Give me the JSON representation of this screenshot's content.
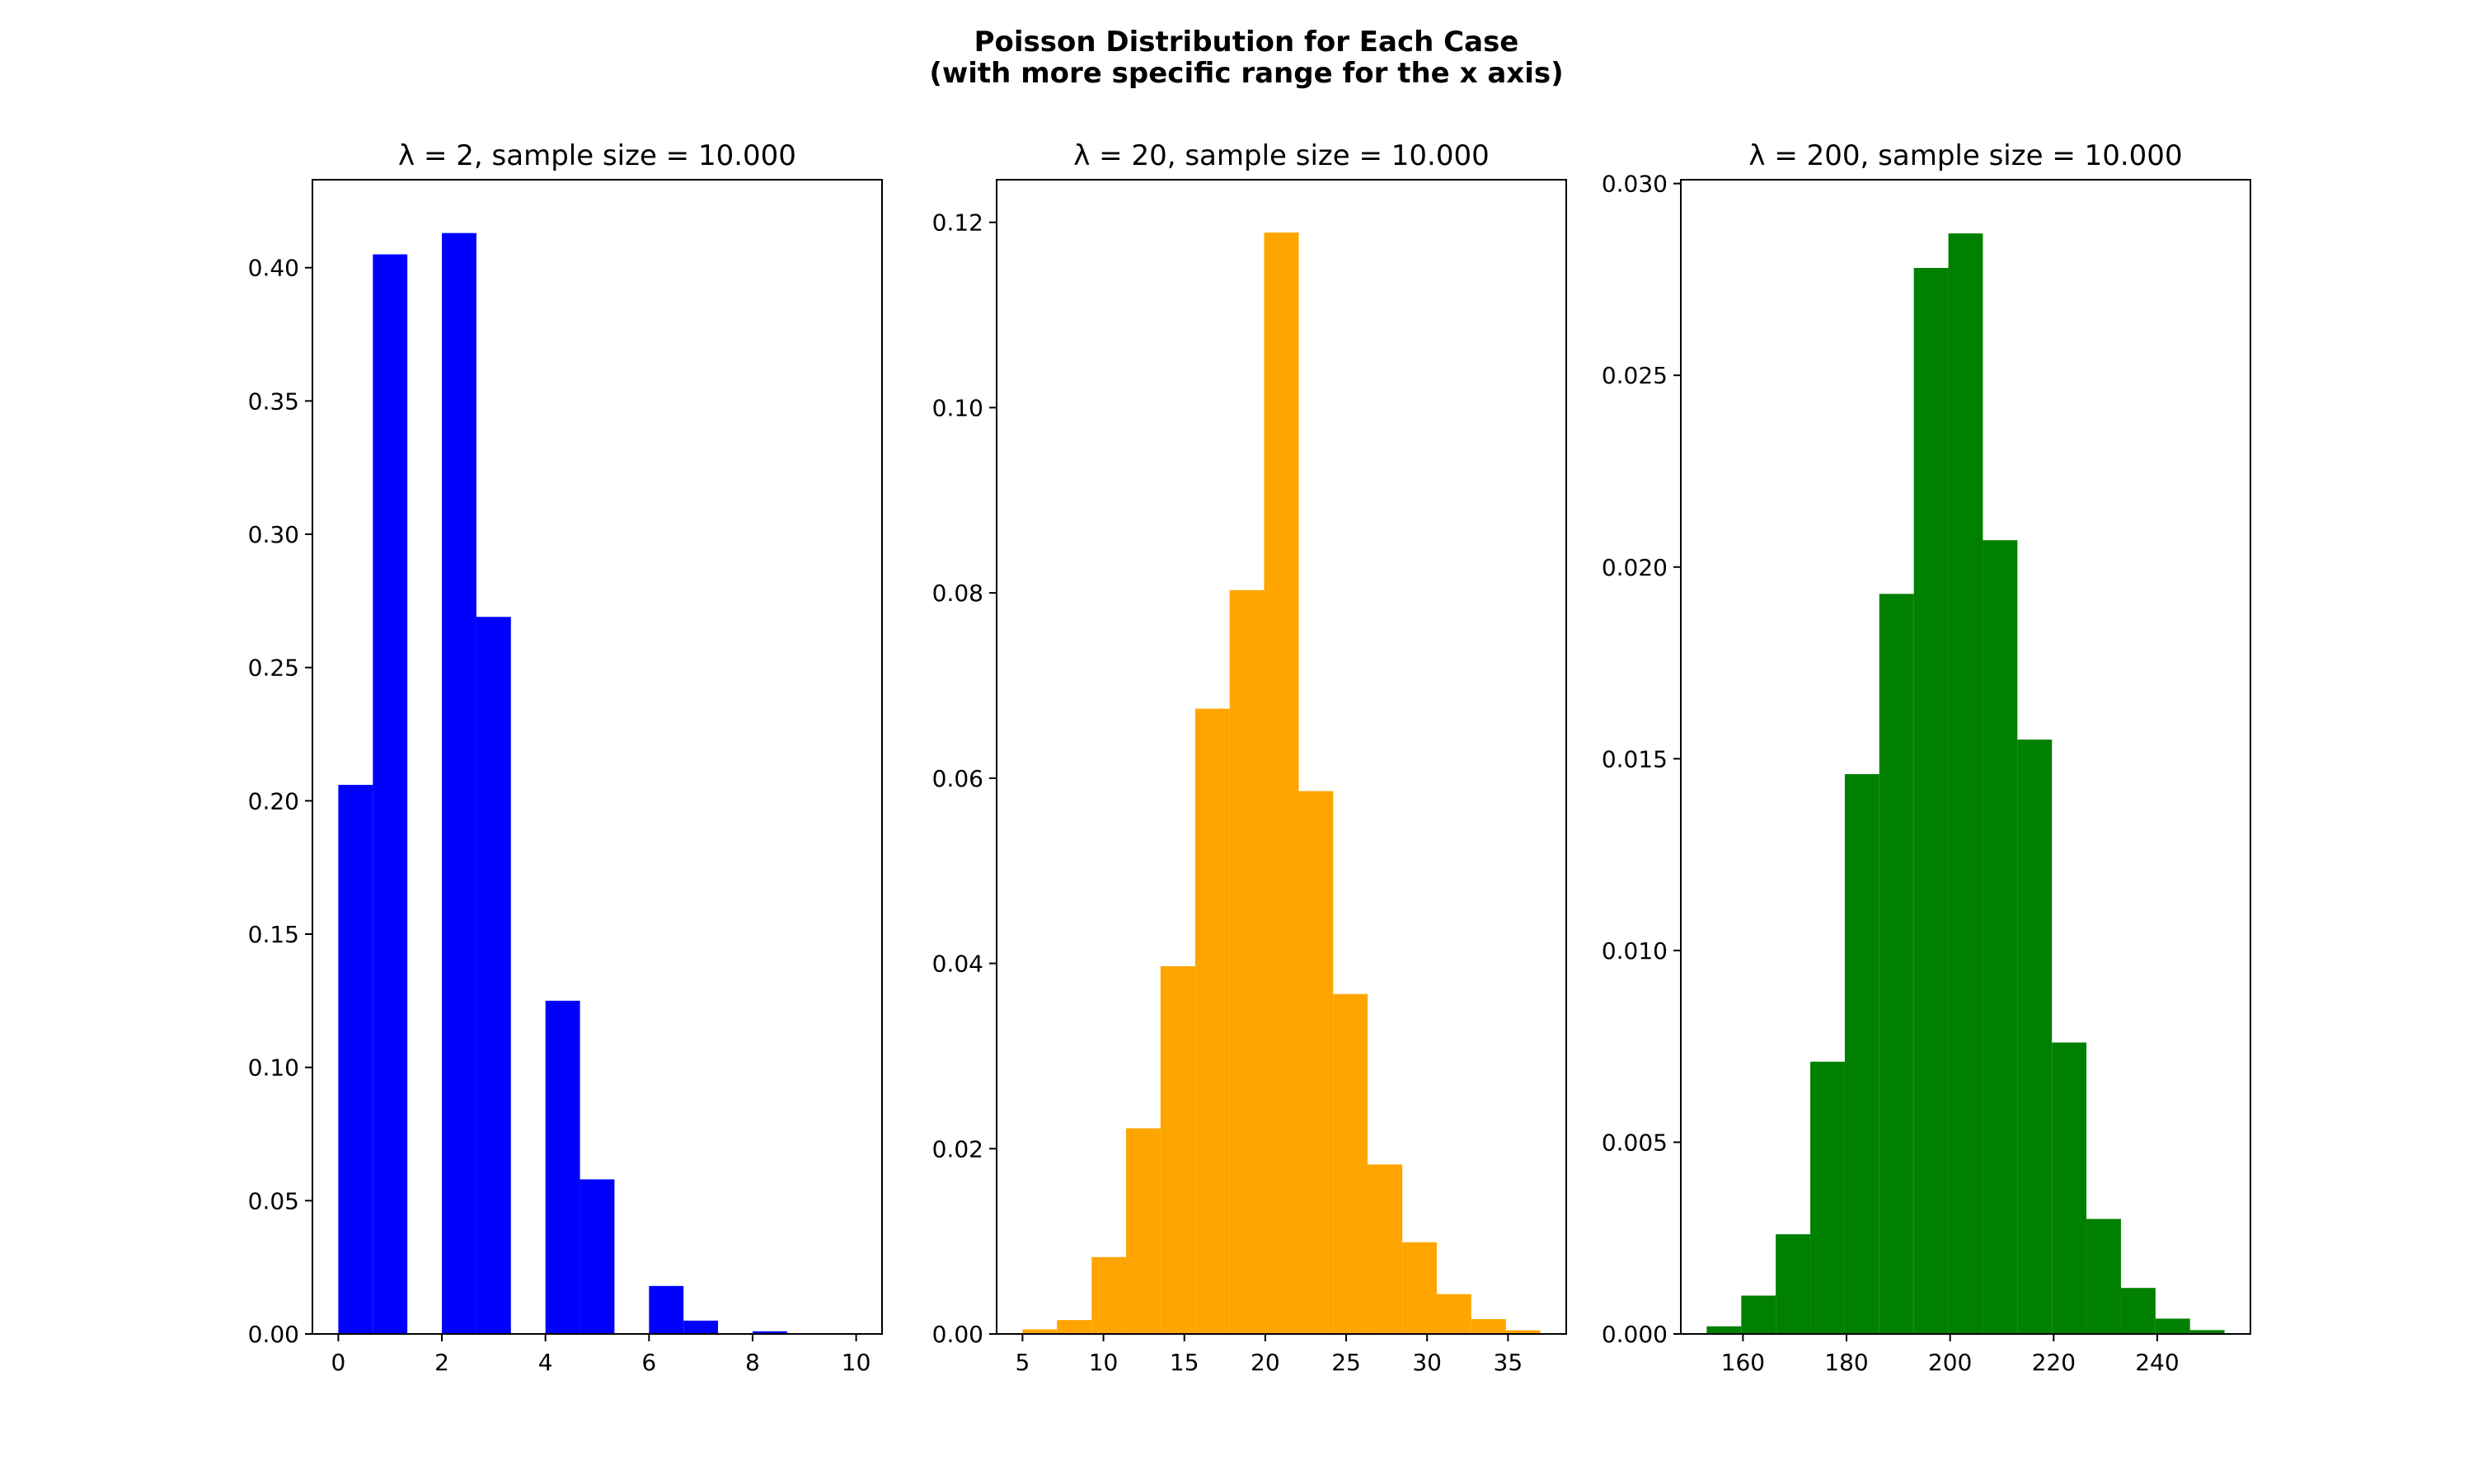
{
  "figure": {
    "title_line1": "Poisson Distribution for Each Case",
    "title_line2": "(with more specific range for the x axis)"
  },
  "chart_data": [
    {
      "type": "bar",
      "title": "λ = 2, sample size = 10.000",
      "color": "#0000ff",
      "xlim": [
        -0.5,
        10.5
      ],
      "ylim": [
        0,
        0.433
      ],
      "xticks": [
        0,
        2,
        4,
        6,
        8,
        10
      ],
      "xtick_labels": [
        "0",
        "2",
        "4",
        "6",
        "8",
        "10"
      ],
      "yticks": [
        0.0,
        0.05,
        0.1,
        0.15,
        0.2,
        0.25,
        0.3,
        0.35,
        0.4
      ],
      "ytick_labels": [
        "0.00",
        "0.05",
        "0.10",
        "0.15",
        "0.20",
        "0.25",
        "0.30",
        "0.35",
        "0.40"
      ],
      "bins": [
        {
          "x0": 0.0,
          "x1": 0.667,
          "value": 0.206
        },
        {
          "x0": 0.667,
          "x1": 1.333,
          "value": 0.405
        },
        {
          "x0": 1.333,
          "x1": 2.0,
          "value": 0.0
        },
        {
          "x0": 2.0,
          "x1": 2.667,
          "value": 0.413
        },
        {
          "x0": 2.667,
          "x1": 3.333,
          "value": 0.269
        },
        {
          "x0": 3.333,
          "x1": 4.0,
          "value": 0.0
        },
        {
          "x0": 4.0,
          "x1": 4.667,
          "value": 0.125
        },
        {
          "x0": 4.667,
          "x1": 5.333,
          "value": 0.058
        },
        {
          "x0": 5.333,
          "x1": 6.0,
          "value": 0.0
        },
        {
          "x0": 6.0,
          "x1": 6.667,
          "value": 0.018
        },
        {
          "x0": 6.667,
          "x1": 7.333,
          "value": 0.005
        },
        {
          "x0": 7.333,
          "x1": 8.0,
          "value": 0.0
        },
        {
          "x0": 8.0,
          "x1": 8.667,
          "value": 0.001
        },
        {
          "x0": 8.667,
          "x1": 9.333,
          "value": 0.0
        },
        {
          "x0": 9.333,
          "x1": 10.0,
          "value": 0.0
        }
      ]
    },
    {
      "type": "bar",
      "title": "λ = 20, sample size = 10.000",
      "color": "#ffa500",
      "xlim": [
        3.4,
        38.6
      ],
      "ylim": [
        0,
        0.1246
      ],
      "xticks": [
        5,
        10,
        15,
        20,
        25,
        30,
        35
      ],
      "xtick_labels": [
        "5",
        "10",
        "15",
        "20",
        "25",
        "30",
        "35"
      ],
      "yticks": [
        0.0,
        0.02,
        0.04,
        0.06,
        0.08,
        0.1,
        0.12
      ],
      "ytick_labels": [
        "0.00",
        "0.02",
        "0.04",
        "0.06",
        "0.08",
        "0.10",
        "0.12"
      ],
      "bins": [
        {
          "x0": 5.0,
          "x1": 7.13,
          "value": 0.0005
        },
        {
          "x0": 7.13,
          "x1": 9.27,
          "value": 0.0015
        },
        {
          "x0": 9.27,
          "x1": 11.4,
          "value": 0.0083
        },
        {
          "x0": 11.4,
          "x1": 13.53,
          "value": 0.0222
        },
        {
          "x0": 13.53,
          "x1": 15.67,
          "value": 0.0397
        },
        {
          "x0": 15.67,
          "x1": 17.8,
          "value": 0.0675
        },
        {
          "x0": 17.8,
          "x1": 19.93,
          "value": 0.0803
        },
        {
          "x0": 19.93,
          "x1": 22.07,
          "value": 0.1189
        },
        {
          "x0": 22.07,
          "x1": 24.2,
          "value": 0.0586
        },
        {
          "x0": 24.2,
          "x1": 26.33,
          "value": 0.0367
        },
        {
          "x0": 26.33,
          "x1": 28.47,
          "value": 0.0183
        },
        {
          "x0": 28.47,
          "x1": 30.6,
          "value": 0.0099
        },
        {
          "x0": 30.6,
          "x1": 32.73,
          "value": 0.0043
        },
        {
          "x0": 32.73,
          "x1": 34.87,
          "value": 0.0016
        },
        {
          "x0": 34.87,
          "x1": 37.0,
          "value": 0.0004
        }
      ]
    },
    {
      "type": "bar",
      "title": "λ = 200, sample size = 10.000",
      "color": "#008000",
      "xlim": [
        148.0,
        258.0
      ],
      "ylim": [
        0,
        0.0301
      ],
      "xticks": [
        160,
        180,
        200,
        220,
        240
      ],
      "xtick_labels": [
        "160",
        "180",
        "200",
        "220",
        "240"
      ],
      "yticks": [
        0.0,
        0.005,
        0.01,
        0.015,
        0.02,
        0.025,
        0.03
      ],
      "ytick_labels": [
        "0.000",
        "0.005",
        "0.010",
        "0.015",
        "0.020",
        "0.025",
        "0.030"
      ],
      "bins": [
        {
          "x0": 153.0,
          "x1": 159.67,
          "value": 0.0002
        },
        {
          "x0": 159.67,
          "x1": 166.33,
          "value": 0.001
        },
        {
          "x0": 166.33,
          "x1": 173.0,
          "value": 0.0026
        },
        {
          "x0": 173.0,
          "x1": 179.67,
          "value": 0.0071
        },
        {
          "x0": 179.67,
          "x1": 186.33,
          "value": 0.0146
        },
        {
          "x0": 186.33,
          "x1": 193.0,
          "value": 0.0193
        },
        {
          "x0": 193.0,
          "x1": 199.67,
          "value": 0.0278
        },
        {
          "x0": 199.67,
          "x1": 206.33,
          "value": 0.0287
        },
        {
          "x0": 206.33,
          "x1": 213.0,
          "value": 0.0207
        },
        {
          "x0": 213.0,
          "x1": 219.67,
          "value": 0.0155
        },
        {
          "x0": 219.67,
          "x1": 226.33,
          "value": 0.0076
        },
        {
          "x0": 226.33,
          "x1": 233.0,
          "value": 0.003
        },
        {
          "x0": 233.0,
          "x1": 239.67,
          "value": 0.0012
        },
        {
          "x0": 239.67,
          "x1": 246.33,
          "value": 0.0004
        },
        {
          "x0": 246.33,
          "x1": 253.0,
          "value": 0.0001
        }
      ]
    }
  ]
}
